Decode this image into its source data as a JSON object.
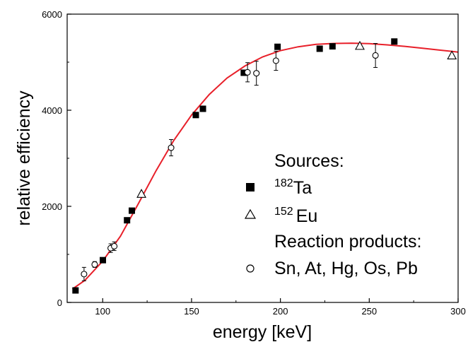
{
  "chart_data": {
    "type": "scatter",
    "xlabel": "energy [keV]",
    "ylabel": "relative efficiency",
    "xlim": [
      80,
      300
    ],
    "ylim": [
      0,
      6000
    ],
    "x_ticks": [
      "100",
      "150",
      "200",
      "250",
      "300"
    ],
    "y_ticks": [
      "0",
      "2000",
      "4000",
      "6000"
    ],
    "series": [
      {
        "name": "182Ta",
        "name_sup": "182",
        "name_base": "Ta",
        "marker": "filled-square",
        "points": [
          {
            "x": 84.7,
            "y": 250
          },
          {
            "x": 100.1,
            "y": 880
          },
          {
            "x": 113.7,
            "y": 1710
          },
          {
            "x": 116.4,
            "y": 1910
          },
          {
            "x": 152.4,
            "y": 3900
          },
          {
            "x": 156.4,
            "y": 4030
          },
          {
            "x": 179.4,
            "y": 4780
          },
          {
            "x": 198.4,
            "y": 5320
          },
          {
            "x": 222.1,
            "y": 5280
          },
          {
            "x": 229.3,
            "y": 5330
          },
          {
            "x": 264.1,
            "y": 5430
          }
        ]
      },
      {
        "name": "152Eu",
        "name_sup": "152",
        "name_base": "Eu",
        "marker": "open-triangle",
        "points": [
          {
            "x": 121.8,
            "y": 2260
          },
          {
            "x": 244.7,
            "y": 5340
          },
          {
            "x": 296.5,
            "y": 5140
          }
        ]
      },
      {
        "name": "Sn, At, Hg, Os, Pb",
        "marker": "open-circle",
        "points": [
          {
            "x": 89.5,
            "y": 590,
            "err": 140
          },
          {
            "x": 95.5,
            "y": 790,
            "err": 60
          },
          {
            "x": 104.5,
            "y": 1130,
            "err": 90
          },
          {
            "x": 106.5,
            "y": 1170,
            "err": 90
          },
          {
            "x": 138.5,
            "y": 3220,
            "err": 170
          },
          {
            "x": 181.5,
            "y": 4790,
            "err": 200
          },
          {
            "x": 186.5,
            "y": 4770,
            "err": 250
          },
          {
            "x": 197.5,
            "y": 5030,
            "err": 200
          },
          {
            "x": 253.5,
            "y": 5140,
            "err": 250
          }
        ]
      }
    ],
    "fit_curve": {
      "color": "#e8202a",
      "points": [
        [
          83,
          280
        ],
        [
          90,
          460
        ],
        [
          100,
          860
        ],
        [
          110,
          1380
        ],
        [
          120,
          2050
        ],
        [
          130,
          2740
        ],
        [
          140,
          3370
        ],
        [
          150,
          3900
        ],
        [
          160,
          4330
        ],
        [
          170,
          4670
        ],
        [
          180,
          4920
        ],
        [
          190,
          5110
        ],
        [
          200,
          5240
        ],
        [
          210,
          5320
        ],
        [
          220,
          5370
        ],
        [
          230,
          5390
        ],
        [
          240,
          5395
        ],
        [
          250,
          5385
        ],
        [
          260,
          5360
        ],
        [
          270,
          5330
        ],
        [
          280,
          5290
        ],
        [
          290,
          5250
        ],
        [
          300,
          5210
        ]
      ]
    },
    "legend": {
      "position": "lower-right",
      "sources_heading": "Sources:",
      "reaction_heading": "Reaction products:"
    },
    "grid": false
  }
}
